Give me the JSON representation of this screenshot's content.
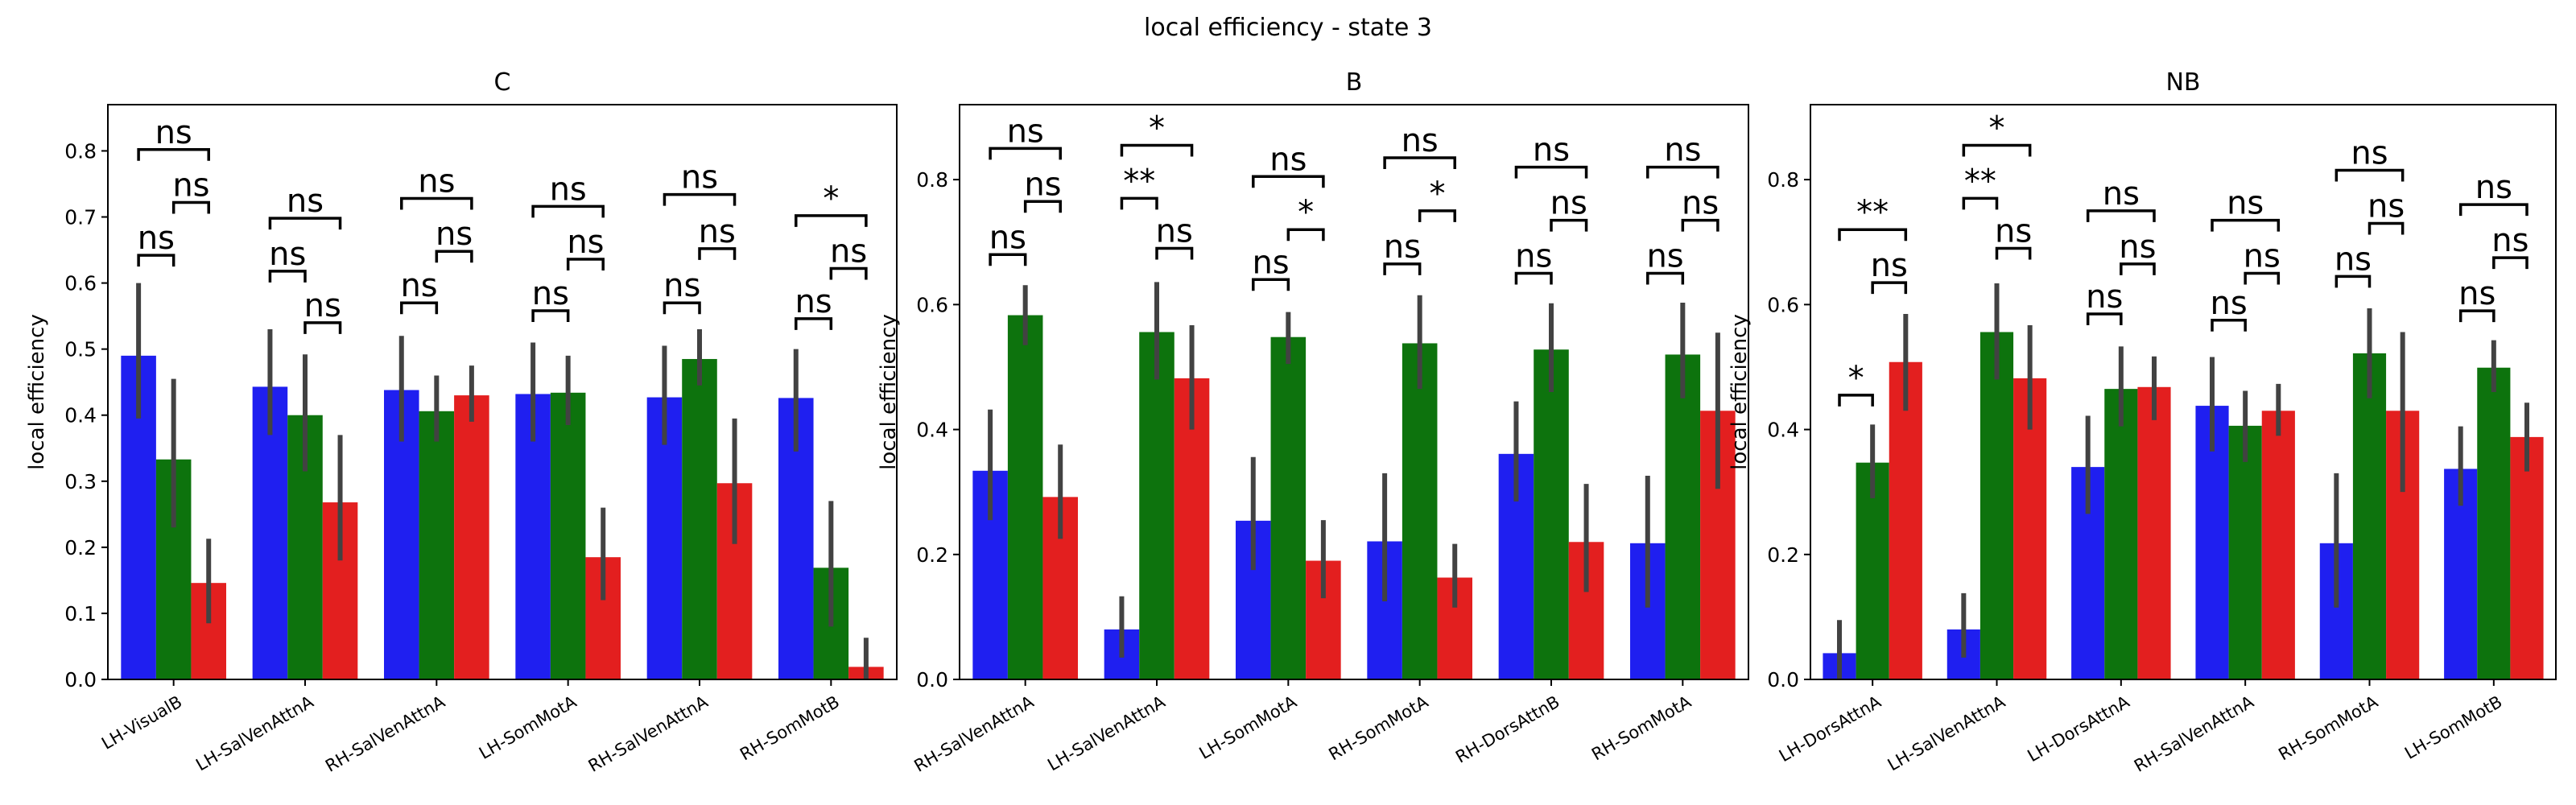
{
  "figure": {
    "title": "local efficiency - state 3",
    "colors": {
      "blue": "#1f1ff0",
      "green": "#0d730d",
      "red": "#e31f1f"
    }
  },
  "chart_data": [
    {
      "type": "bar",
      "title": "C",
      "ylabel": "local efficiency",
      "ylim": [
        0,
        0.87
      ],
      "yticks": [
        "0.0",
        "0.1",
        "0.2",
        "0.3",
        "0.4",
        "0.5",
        "0.6",
        "0.7",
        "0.8"
      ],
      "categories": [
        "LH-VisualB",
        "LH-SalVenAttnA",
        "RH-SalVenAttnA",
        "LH-SomMotA",
        "RH-SalVenAttnA",
        "RH-SomMotB"
      ],
      "series": [
        {
          "color": "blue",
          "values": [
            0.49,
            0.443,
            0.438,
            0.432,
            0.427,
            0.426
          ],
          "err_low": [
            0.395,
            0.37,
            0.36,
            0.36,
            0.355,
            0.345
          ],
          "err_high": [
            0.6,
            0.53,
            0.52,
            0.51,
            0.505,
            0.5
          ]
        },
        {
          "color": "green",
          "values": [
            0.333,
            0.4,
            0.406,
            0.434,
            0.485,
            0.169
          ],
          "err_low": [
            0.23,
            0.315,
            0.36,
            0.385,
            0.445,
            0.08
          ],
          "err_high": [
            0.455,
            0.492,
            0.46,
            0.49,
            0.53,
            0.27
          ]
        },
        {
          "color": "red",
          "values": [
            0.146,
            0.268,
            0.43,
            0.185,
            0.297,
            0.019
          ],
          "err_low": [
            0.085,
            0.18,
            0.39,
            0.12,
            0.205,
            0.0
          ],
          "err_high": [
            0.213,
            0.37,
            0.475,
            0.26,
            0.395,
            0.063
          ]
        }
      ],
      "significance": [
        {
          "category": 0,
          "from": 0,
          "to": 1,
          "y": 0.642,
          "label": "ns"
        },
        {
          "category": 0,
          "from": 1,
          "to": 2,
          "y": 0.722,
          "label": "ns"
        },
        {
          "category": 0,
          "from": 0,
          "to": 2,
          "y": 0.802,
          "label": "ns"
        },
        {
          "category": 1,
          "from": 0,
          "to": 1,
          "y": 0.618,
          "label": "ns"
        },
        {
          "category": 1,
          "from": 1,
          "to": 2,
          "y": 0.54,
          "label": "ns"
        },
        {
          "category": 1,
          "from": 0,
          "to": 2,
          "y": 0.698,
          "label": "ns"
        },
        {
          "category": 2,
          "from": 0,
          "to": 1,
          "y": 0.57,
          "label": "ns"
        },
        {
          "category": 2,
          "from": 1,
          "to": 2,
          "y": 0.648,
          "label": "ns"
        },
        {
          "category": 2,
          "from": 0,
          "to": 2,
          "y": 0.728,
          "label": "ns"
        },
        {
          "category": 3,
          "from": 0,
          "to": 1,
          "y": 0.558,
          "label": "ns"
        },
        {
          "category": 3,
          "from": 1,
          "to": 2,
          "y": 0.636,
          "label": "ns"
        },
        {
          "category": 3,
          "from": 0,
          "to": 2,
          "y": 0.716,
          "label": "ns"
        },
        {
          "category": 4,
          "from": 0,
          "to": 1,
          "y": 0.57,
          "label": "ns"
        },
        {
          "category": 4,
          "from": 1,
          "to": 2,
          "y": 0.652,
          "label": "ns"
        },
        {
          "category": 4,
          "from": 0,
          "to": 2,
          "y": 0.734,
          "label": "ns"
        },
        {
          "category": 5,
          "from": 0,
          "to": 1,
          "y": 0.546,
          "label": "ns"
        },
        {
          "category": 5,
          "from": 1,
          "to": 2,
          "y": 0.622,
          "label": "ns"
        },
        {
          "category": 5,
          "from": 0,
          "to": 2,
          "y": 0.702,
          "label": "*"
        }
      ]
    },
    {
      "type": "bar",
      "title": "B",
      "ylabel": "local efficiency",
      "ylim": [
        0,
        0.92
      ],
      "yticks": [
        "0.0",
        "0.2",
        "0.4",
        "0.6",
        "0.8"
      ],
      "categories": [
        "RH-SalVenAttnA",
        "LH-SalVenAttnA",
        "LH-SomMotA",
        "RH-SomMotA",
        "RH-DorsAttnB",
        "RH-SomMotA"
      ],
      "series": [
        {
          "color": "blue",
          "values": [
            0.334,
            0.08,
            0.254,
            0.221,
            0.361,
            0.218
          ],
          "err_low": [
            0.255,
            0.035,
            0.175,
            0.125,
            0.285,
            0.115
          ],
          "err_high": [
            0.432,
            0.133,
            0.356,
            0.33,
            0.445,
            0.326
          ]
        },
        {
          "color": "green",
          "values": [
            0.583,
            0.556,
            0.548,
            0.538,
            0.528,
            0.52
          ],
          "err_low": [
            0.535,
            0.48,
            0.505,
            0.465,
            0.46,
            0.45
          ],
          "err_high": [
            0.631,
            0.636,
            0.588,
            0.615,
            0.602,
            0.603
          ]
        },
        {
          "color": "red",
          "values": [
            0.292,
            0.482,
            0.19,
            0.163,
            0.22,
            0.43
          ],
          "err_low": [
            0.225,
            0.4,
            0.13,
            0.115,
            0.14,
            0.305
          ],
          "err_high": [
            0.376,
            0.567,
            0.255,
            0.217,
            0.313,
            0.555
          ]
        }
      ],
      "significance": [
        {
          "category": 0,
          "from": 0,
          "to": 1,
          "y": 0.68,
          "label": "ns"
        },
        {
          "category": 0,
          "from": 1,
          "to": 2,
          "y": 0.765,
          "label": "ns"
        },
        {
          "category": 0,
          "from": 0,
          "to": 2,
          "y": 0.85,
          "label": "ns"
        },
        {
          "category": 1,
          "from": 0,
          "to": 1,
          "y": 0.77,
          "label": "**"
        },
        {
          "category": 1,
          "from": 1,
          "to": 2,
          "y": 0.69,
          "label": "ns"
        },
        {
          "category": 1,
          "from": 0,
          "to": 2,
          "y": 0.855,
          "label": "*"
        },
        {
          "category": 2,
          "from": 0,
          "to": 1,
          "y": 0.64,
          "label": "ns"
        },
        {
          "category": 2,
          "from": 1,
          "to": 2,
          "y": 0.72,
          "label": "*"
        },
        {
          "category": 2,
          "from": 0,
          "to": 2,
          "y": 0.805,
          "label": "ns"
        },
        {
          "category": 3,
          "from": 0,
          "to": 1,
          "y": 0.665,
          "label": "ns"
        },
        {
          "category": 3,
          "from": 1,
          "to": 2,
          "y": 0.75,
          "label": "*"
        },
        {
          "category": 3,
          "from": 0,
          "to": 2,
          "y": 0.835,
          "label": "ns"
        },
        {
          "category": 4,
          "from": 0,
          "to": 1,
          "y": 0.65,
          "label": "ns"
        },
        {
          "category": 4,
          "from": 1,
          "to": 2,
          "y": 0.735,
          "label": "ns"
        },
        {
          "category": 4,
          "from": 0,
          "to": 2,
          "y": 0.82,
          "label": "ns"
        },
        {
          "category": 5,
          "from": 0,
          "to": 1,
          "y": 0.65,
          "label": "ns"
        },
        {
          "category": 5,
          "from": 1,
          "to": 2,
          "y": 0.735,
          "label": "ns"
        },
        {
          "category": 5,
          "from": 0,
          "to": 2,
          "y": 0.82,
          "label": "ns"
        }
      ]
    },
    {
      "type": "bar",
      "title": "NB",
      "ylabel": "local efficiency",
      "ylim": [
        0,
        0.92
      ],
      "yticks": [
        "0.0",
        "0.2",
        "0.4",
        "0.6",
        "0.8"
      ],
      "categories": [
        "LH-DorsAttnA",
        "LH-SalVenAttnA",
        "LH-DorsAttnA",
        "RH-SalVenAttnA",
        "RH-SomMotA",
        "LH-SomMotB"
      ],
      "series": [
        {
          "color": "blue",
          "values": [
            0.042,
            0.08,
            0.34,
            0.438,
            0.218,
            0.337
          ],
          "err_low": [
            0.0,
            0.035,
            0.265,
            0.365,
            0.115,
            0.278
          ],
          "err_high": [
            0.095,
            0.138,
            0.422,
            0.516,
            0.33,
            0.405
          ]
        },
        {
          "color": "green",
          "values": [
            0.347,
            0.556,
            0.465,
            0.406,
            0.522,
            0.499
          ],
          "err_low": [
            0.29,
            0.48,
            0.405,
            0.348,
            0.45,
            0.46
          ],
          "err_high": [
            0.408,
            0.634,
            0.533,
            0.462,
            0.594,
            0.543
          ]
        },
        {
          "color": "red",
          "values": [
            0.508,
            0.482,
            0.468,
            0.43,
            0.43,
            0.388
          ],
          "err_low": [
            0.43,
            0.4,
            0.415,
            0.39,
            0.3,
            0.333
          ],
          "err_high": [
            0.585,
            0.567,
            0.517,
            0.473,
            0.556,
            0.443
          ]
        }
      ],
      "significance": [
        {
          "category": 0,
          "from": 0,
          "to": 1,
          "y": 0.455,
          "label": "*"
        },
        {
          "category": 0,
          "from": 1,
          "to": 2,
          "y": 0.635,
          "label": "ns"
        },
        {
          "category": 0,
          "from": 0,
          "to": 2,
          "y": 0.72,
          "label": "**"
        },
        {
          "category": 1,
          "from": 0,
          "to": 1,
          "y": 0.77,
          "label": "**"
        },
        {
          "category": 1,
          "from": 1,
          "to": 2,
          "y": 0.69,
          "label": "ns"
        },
        {
          "category": 1,
          "from": 0,
          "to": 2,
          "y": 0.855,
          "label": "*"
        },
        {
          "category": 2,
          "from": 0,
          "to": 1,
          "y": 0.585,
          "label": "ns"
        },
        {
          "category": 2,
          "from": 1,
          "to": 2,
          "y": 0.665,
          "label": "ns"
        },
        {
          "category": 2,
          "from": 0,
          "to": 2,
          "y": 0.75,
          "label": "ns"
        },
        {
          "category": 3,
          "from": 0,
          "to": 1,
          "y": 0.575,
          "label": "ns"
        },
        {
          "category": 3,
          "from": 1,
          "to": 2,
          "y": 0.65,
          "label": "ns"
        },
        {
          "category": 3,
          "from": 0,
          "to": 2,
          "y": 0.735,
          "label": "ns"
        },
        {
          "category": 4,
          "from": 0,
          "to": 1,
          "y": 0.645,
          "label": "ns"
        },
        {
          "category": 4,
          "from": 1,
          "to": 2,
          "y": 0.73,
          "label": "ns"
        },
        {
          "category": 4,
          "from": 0,
          "to": 2,
          "y": 0.815,
          "label": "ns"
        },
        {
          "category": 5,
          "from": 0,
          "to": 1,
          "y": 0.59,
          "label": "ns"
        },
        {
          "category": 5,
          "from": 1,
          "to": 2,
          "y": 0.675,
          "label": "ns"
        },
        {
          "category": 5,
          "from": 0,
          "to": 2,
          "y": 0.76,
          "label": "ns"
        }
      ]
    }
  ]
}
